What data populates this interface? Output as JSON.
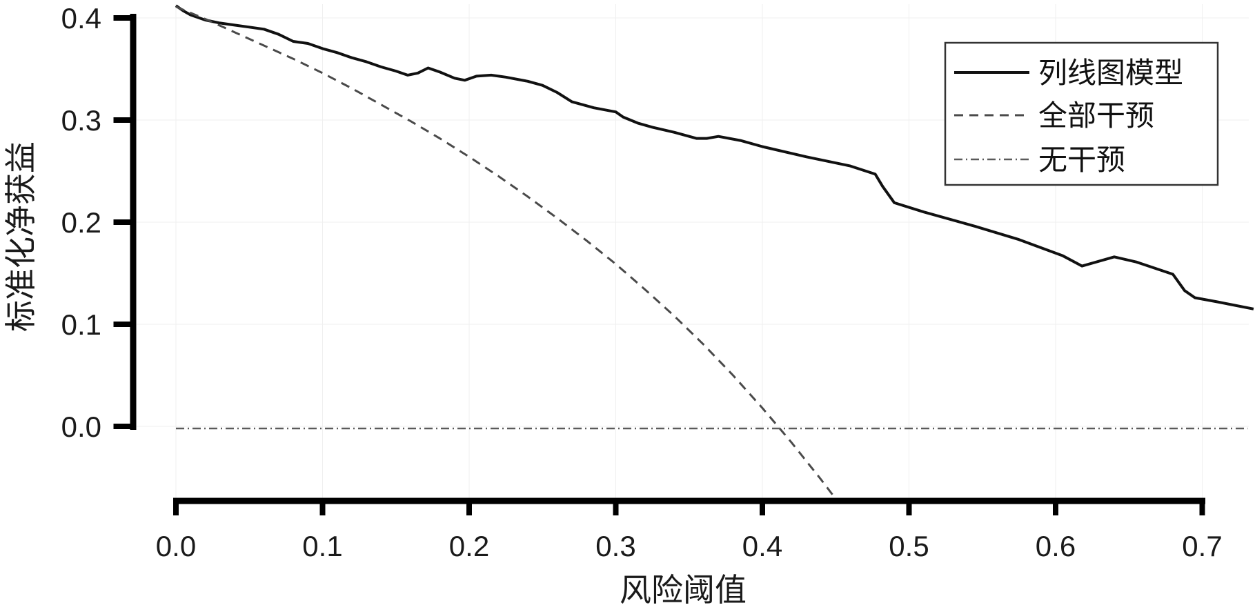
{
  "chart_data": {
    "type": "line",
    "title": "",
    "xlabel": "风险阈值",
    "ylabel": "标准化净获益",
    "xlim": [
      0.0,
      0.735
    ],
    "ylim": [
      -0.073,
      0.415
    ],
    "grid": false,
    "legend_position": "top-right",
    "x_ticks": {
      "values": [
        0.0,
        0.1,
        0.2,
        0.3,
        0.4,
        0.5,
        0.6,
        0.7
      ],
      "labels": [
        "0.0",
        "0.1",
        "0.2",
        "0.3",
        "0.4",
        "0.5",
        "0.6",
        "0.7"
      ]
    },
    "y_ticks": {
      "values": [
        0.0,
        0.1,
        0.2,
        0.3,
        0.4
      ],
      "labels": [
        "0.0",
        "0.1",
        "0.2",
        "0.3",
        "0.4"
      ]
    },
    "series": [
      {
        "name": "列线图模型",
        "style": "solid",
        "color": "#111111",
        "width": 4,
        "points": [
          [
            0.0,
            0.412
          ],
          [
            0.005,
            0.407
          ],
          [
            0.01,
            0.403
          ],
          [
            0.02,
            0.398
          ],
          [
            0.03,
            0.395
          ],
          [
            0.04,
            0.393
          ],
          [
            0.05,
            0.391
          ],
          [
            0.06,
            0.389
          ],
          [
            0.07,
            0.384
          ],
          [
            0.08,
            0.377
          ],
          [
            0.09,
            0.375
          ],
          [
            0.1,
            0.37
          ],
          [
            0.11,
            0.366
          ],
          [
            0.12,
            0.361
          ],
          [
            0.13,
            0.357
          ],
          [
            0.14,
            0.352
          ],
          [
            0.15,
            0.348
          ],
          [
            0.158,
            0.344
          ],
          [
            0.165,
            0.346
          ],
          [
            0.172,
            0.351
          ],
          [
            0.18,
            0.347
          ],
          [
            0.19,
            0.341
          ],
          [
            0.197,
            0.339
          ],
          [
            0.205,
            0.343
          ],
          [
            0.215,
            0.344
          ],
          [
            0.225,
            0.342
          ],
          [
            0.24,
            0.338
          ],
          [
            0.25,
            0.334
          ],
          [
            0.26,
            0.327
          ],
          [
            0.27,
            0.318
          ],
          [
            0.285,
            0.312
          ],
          [
            0.3,
            0.308
          ],
          [
            0.305,
            0.303
          ],
          [
            0.315,
            0.297
          ],
          [
            0.325,
            0.293
          ],
          [
            0.34,
            0.288
          ],
          [
            0.355,
            0.282
          ],
          [
            0.362,
            0.282
          ],
          [
            0.37,
            0.284
          ],
          [
            0.385,
            0.28
          ],
          [
            0.4,
            0.274
          ],
          [
            0.43,
            0.264
          ],
          [
            0.46,
            0.255
          ],
          [
            0.477,
            0.247
          ],
          [
            0.482,
            0.235
          ],
          [
            0.49,
            0.219
          ],
          [
            0.51,
            0.21
          ],
          [
            0.545,
            0.196
          ],
          [
            0.575,
            0.183
          ],
          [
            0.605,
            0.167
          ],
          [
            0.618,
            0.157
          ],
          [
            0.64,
            0.166
          ],
          [
            0.655,
            0.161
          ],
          [
            0.68,
            0.149
          ],
          [
            0.688,
            0.133
          ],
          [
            0.695,
            0.126
          ],
          [
            0.71,
            0.122
          ],
          [
            0.735,
            0.115
          ]
        ]
      },
      {
        "name": "全部干预",
        "style": "dashed",
        "color": "#4a4a4a",
        "width": 3,
        "points": [
          [
            0.0,
            0.411
          ],
          [
            0.02,
            0.399
          ],
          [
            0.04,
            0.386
          ],
          [
            0.06,
            0.373
          ],
          [
            0.08,
            0.36
          ],
          [
            0.1,
            0.346
          ],
          [
            0.12,
            0.331
          ],
          [
            0.14,
            0.315
          ],
          [
            0.16,
            0.299
          ],
          [
            0.18,
            0.282
          ],
          [
            0.2,
            0.264
          ],
          [
            0.22,
            0.245
          ],
          [
            0.24,
            0.225
          ],
          [
            0.26,
            0.204
          ],
          [
            0.28,
            0.182
          ],
          [
            0.3,
            0.159
          ],
          [
            0.32,
            0.134
          ],
          [
            0.34,
            0.108
          ],
          [
            0.36,
            0.08
          ],
          [
            0.38,
            0.05
          ],
          [
            0.4,
            0.018
          ],
          [
            0.41,
            0.001
          ],
          [
            0.42,
            -0.016
          ],
          [
            0.44,
            -0.052
          ],
          [
            0.45,
            -0.071
          ]
        ]
      },
      {
        "name": "无干预",
        "style": "dashdot",
        "color": "#5a5a5a",
        "width": 2.5,
        "points": [
          [
            0.0,
            -0.002
          ],
          [
            0.731,
            -0.002
          ]
        ]
      }
    ]
  },
  "colors": {
    "axis": "#000000",
    "text": "#1a1a1a",
    "background": "#ffffff",
    "legend_border": "#333333"
  }
}
